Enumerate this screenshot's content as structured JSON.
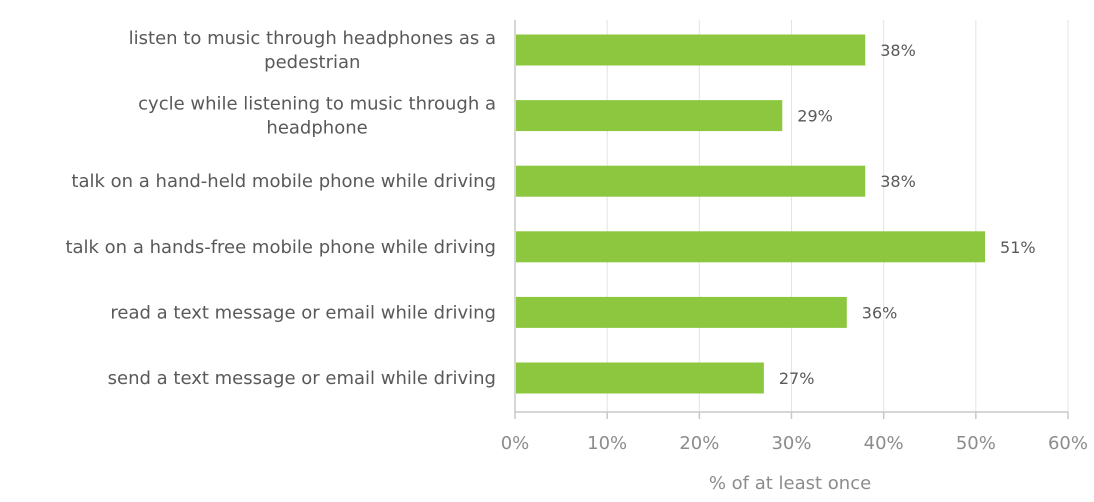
{
  "chart_data": {
    "type": "bar",
    "orientation": "horizontal",
    "categories": [
      [
        "listen to music through headphones as a",
        "pedestrian"
      ],
      [
        "cycle while listening to music through a",
        "headphone"
      ],
      [
        "talk on a hand-held mobile phone while driving"
      ],
      [
        "talk on a hands-free mobile phone while driving"
      ],
      [
        "read a text message or email while driving"
      ],
      [
        "send a text message or email while driving"
      ]
    ],
    "values": [
      38,
      29,
      38,
      51,
      36,
      27
    ],
    "value_labels": [
      "38%",
      "29%",
      "38%",
      "51%",
      "36%",
      "27%"
    ],
    "xlim": [
      0,
      60
    ],
    "xticks": [
      0,
      10,
      20,
      30,
      40,
      50,
      60
    ],
    "xtick_labels": [
      "0%",
      "10%",
      "20%",
      "30%",
      "40%",
      "50%",
      "60%"
    ],
    "xlabel": "% of at least once",
    "grid": "vertical",
    "legend": "none",
    "bar_color": "#8dc63f"
  }
}
